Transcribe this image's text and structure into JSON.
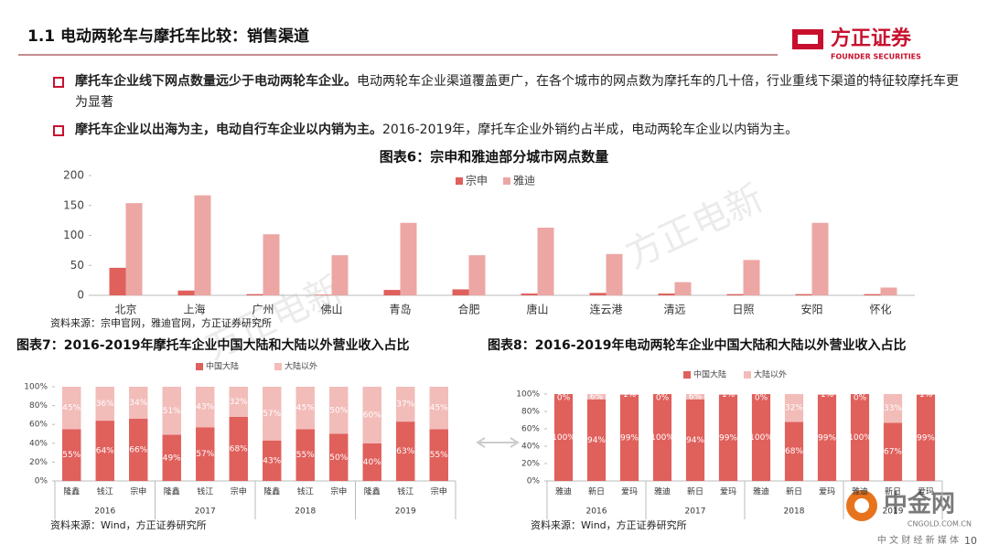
{
  "header": {
    "title": "1.1 电动两轮车与摩托车比较：销售渠道",
    "logo": "方正证券",
    "logo_en": "FOUNDER SECURITIES"
  },
  "bullets": [
    {
      "bold": "摩托车企业线下网点数量远少于电动两轮车企业。",
      "text": "电动两轮车企业渠道覆盖更广，在各个城市的网点数为摩托车的几十倍，行业重线下渠道的特征较摩托车更为显著"
    },
    {
      "bold": "摩托车企业以出海为主，电动自行车企业以内销为主。",
      "text": "2016-2019年，摩托车企业外销约占半成，电动两轮车企业以内销为主。"
    }
  ],
  "chart_data": [
    {
      "type": "bar",
      "title": "图表6：宗申和雅迪部分城市网点数量",
      "categories": [
        "北京",
        "上海",
        "广州",
        "佛山",
        "青岛",
        "合肥",
        "唐山",
        "连云港",
        "清远",
        "日照",
        "安阳",
        "怀化"
      ],
      "series": [
        {
          "name": "宗申",
          "color": "#e0605c",
          "values": [
            46,
            8,
            2,
            1,
            9,
            10,
            3,
            4,
            3,
            2,
            2,
            2
          ]
        },
        {
          "name": "雅迪",
          "color": "#eca7a4",
          "values": [
            154,
            167,
            102,
            67,
            121,
            67,
            113,
            69,
            22,
            59,
            121,
            13
          ]
        }
      ],
      "ylim": [
        0,
        200
      ],
      "yticks": [
        0,
        50,
        100,
        150,
        200
      ],
      "source": "资料来源：宗申官网，雅迪官网，方正证券研究所"
    },
    {
      "type": "stacked_bar",
      "title": "图表7：2016-2019年摩托车企业中国大陆和大陆以外营业收入占比",
      "categories": [
        "隆鑫",
        "钱江",
        "宗申",
        "隆鑫",
        "钱江",
        "宗申",
        "隆鑫",
        "钱江",
        "宗申",
        "隆鑫",
        "钱江",
        "宗申"
      ],
      "groups": [
        "2016",
        "2017",
        "2018",
        "2019"
      ],
      "series": [
        {
          "name": "中国大陆",
          "color": "#e0605c",
          "values": [
            55,
            64,
            66,
            49,
            57,
            68,
            43,
            55,
            50,
            40,
            63,
            55
          ],
          "value_labels": [
            "55%",
            "64%",
            "66%",
            "49%",
            "57%",
            "68%",
            "43%",
            "55%",
            "50%",
            "40%",
            "63%",
            "55%"
          ]
        },
        {
          "name": "大陆以外",
          "color": "#f2bcb9",
          "values": [
            45,
            36,
            34,
            51,
            43,
            32,
            57,
            45,
            50,
            60,
            37,
            45
          ],
          "value_labels": [
            "45%",
            "36%",
            "34%",
            "51%",
            "43%",
            "32%",
            "57%",
            "45%",
            "50%",
            "60%",
            "37%",
            "45%"
          ]
        }
      ],
      "ylim": [
        0,
        100
      ],
      "yticks": [
        {
          "value": 0,
          "label": "0%"
        },
        {
          "value": 20,
          "label": "20%"
        },
        {
          "value": 40,
          "label": "40%"
        },
        {
          "value": 60,
          "label": "60%"
        },
        {
          "value": 80,
          "label": "80%"
        },
        {
          "value": 100,
          "label": "100%"
        }
      ],
      "source": "资料来源：Wind，方正证券研究所"
    },
    {
      "type": "stacked_bar",
      "title": "图表8：2016-2019年电动两轮车企业中国大陆和大陆以外营业收入占比",
      "categories": [
        "雅迪",
        "新日",
        "爱玛",
        "雅迪",
        "新日",
        "爱玛",
        "雅迪",
        "新日",
        "爱玛",
        "雅迪",
        "新日",
        "爱玛"
      ],
      "groups": [
        "2016",
        "2017",
        "2018",
        "2019"
      ],
      "series": [
        {
          "name": "中国大陆",
          "color": "#e0605c",
          "values": [
            100,
            94,
            99,
            100,
            94,
            99,
            100,
            68,
            99,
            100,
            67,
            99
          ],
          "value_labels": [
            "100%",
            "94%",
            "99%",
            "100%",
            "94%",
            "99%",
            "100%",
            "68%",
            "99%",
            "100%",
            "67%",
            "99%"
          ]
        },
        {
          "name": "大陆以外",
          "color": "#f2bcb9",
          "values": [
            0,
            6,
            1,
            0,
            6,
            1,
            0,
            32,
            1,
            0,
            33,
            1
          ],
          "value_labels": [
            "0%",
            "6%",
            "1%",
            "0%",
            "6%",
            "1%",
            "0%",
            "32%",
            "1%",
            "0%",
            "33%",
            "1%"
          ]
        }
      ],
      "ylim": [
        0,
        100
      ],
      "yticks": [
        {
          "value": 0,
          "label": "0%"
        },
        {
          "value": 20,
          "label": "20%"
        },
        {
          "value": 40,
          "label": "40%"
        },
        {
          "value": 60,
          "label": "60%"
        },
        {
          "value": 80,
          "label": "80%"
        },
        {
          "value": 100,
          "label": "100%"
        }
      ],
      "source": "资料来源：Wind，方正证券研究所"
    }
  ],
  "watermark": "方正电新",
  "footer": {
    "brand": "中金网",
    "domain": "CNGOLD.COM.CN",
    "slogan": "中 文 财 经 新 媒 体",
    "page": "10"
  }
}
